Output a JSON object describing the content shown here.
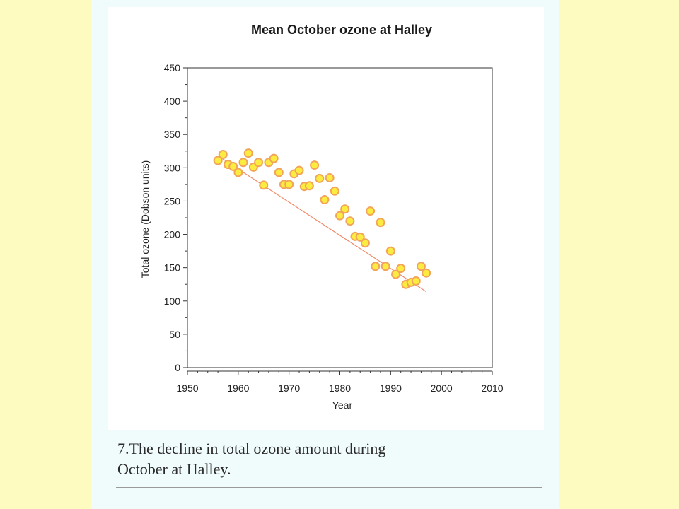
{
  "chart_data": {
    "type": "scatter",
    "title": "Mean October ozone at Halley",
    "xlabel": "Year",
    "ylabel": "Total ozone (Dobson units)",
    "xlim": [
      1950,
      2010
    ],
    "ylim": [
      0,
      450
    ],
    "xticks": [
      1950,
      1960,
      1970,
      1980,
      1990,
      2000,
      2010
    ],
    "yticks": [
      0,
      50,
      100,
      150,
      200,
      250,
      300,
      350,
      400,
      450
    ],
    "grid": false,
    "legend": "none",
    "series": [
      {
        "x": [
          1956,
          1957,
          1958,
          1959,
          1960,
          1961,
          1962,
          1963,
          1964,
          1965,
          1966,
          1967,
          1968,
          1969,
          1970,
          1971,
          1972,
          1973,
          1974,
          1975,
          1976,
          1977,
          1978,
          1979,
          1980,
          1981,
          1982,
          1983,
          1984,
          1985,
          1986,
          1987,
          1988,
          1989,
          1990,
          1991,
          1992,
          1993,
          1994,
          1995,
          1996,
          1997
        ],
        "y": [
          311,
          320,
          305,
          302,
          293,
          308,
          322,
          301,
          308,
          274,
          308,
          314,
          293,
          275,
          275,
          291,
          296,
          272,
          273,
          304,
          284,
          252,
          285,
          265,
          228,
          238,
          220,
          197,
          196,
          187,
          235,
          152,
          218,
          152,
          175,
          140,
          149,
          125,
          128,
          130,
          152,
          142
        ]
      }
    ],
    "trend": {
      "x": [
        1956,
        1997
      ],
      "y": [
        318,
        114
      ]
    },
    "colors": {
      "marker_fill": "#fcec40",
      "marker_edge": "#f2a45a",
      "trend_line": "#f08a68"
    }
  },
  "caption": {
    "line1": "7.The decline in total ozone amount during",
    "line2": "October at Halley."
  }
}
